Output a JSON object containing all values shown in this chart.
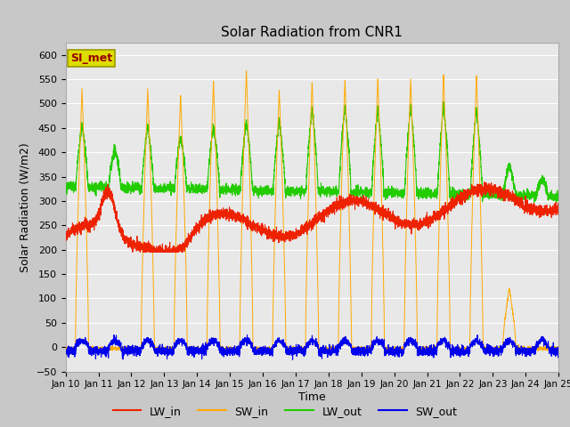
{
  "title": "Solar Radiation from CNR1",
  "xlabel": "Time",
  "ylabel": "Solar Radiation (W/m2)",
  "ylim": [
    -50,
    625
  ],
  "yticks": [
    -50,
    0,
    50,
    100,
    150,
    200,
    250,
    300,
    350,
    400,
    450,
    500,
    550,
    600
  ],
  "fig_bg_color": "#c8c8c8",
  "plot_bg_color": "#e8e8e8",
  "grid_color": "#ffffff",
  "line_colors": {
    "LW_in": "#ee2200",
    "SW_in": "#ffaa00",
    "LW_out": "#22cc00",
    "SW_out": "#0000ee"
  },
  "station_label": "SI_met",
  "station_label_color": "#990000",
  "station_box_facecolor": "#dddd00",
  "station_box_edgecolor": "#999900",
  "n_days": 15,
  "start_day": 10
}
